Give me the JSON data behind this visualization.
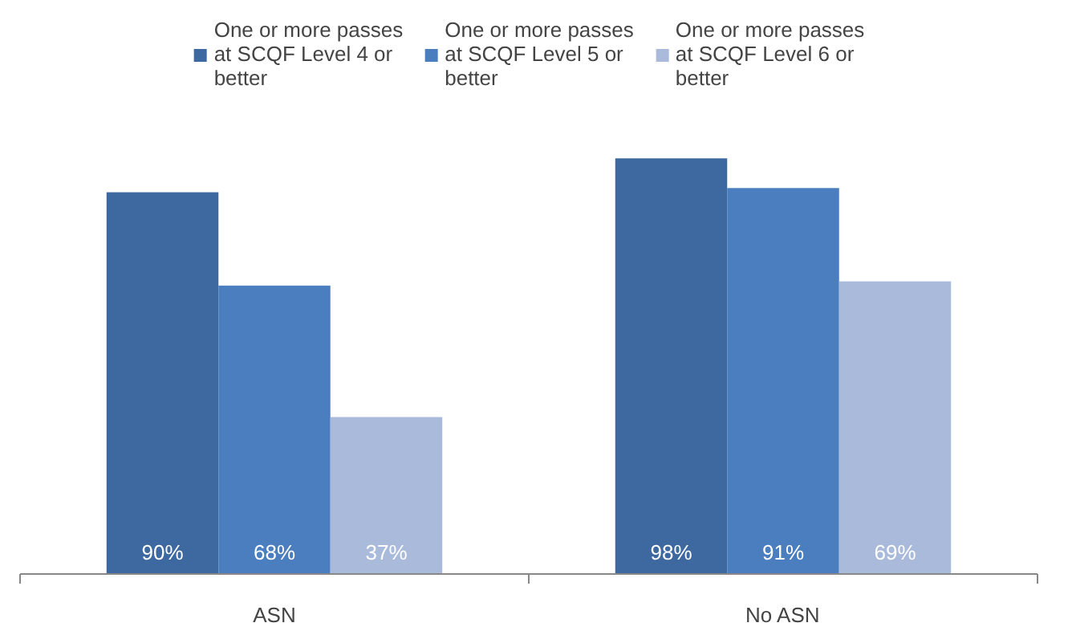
{
  "chart_data": {
    "type": "bar",
    "categories": [
      "ASN",
      "No ASN"
    ],
    "series": [
      {
        "name": "One or more passes at SCQF Level 4 or better",
        "color": "#3e69a0",
        "values": [
          90,
          98
        ],
        "value_labels": [
          "90%",
          "98%"
        ]
      },
      {
        "name": "One or more passes at SCQF Level 5 or better",
        "color": "#4a7ebf",
        "values": [
          68,
          91
        ],
        "value_labels": [
          "68%",
          "91%"
        ]
      },
      {
        "name": "One or more passes at SCQF Level 6 or better",
        "color": "#a9badb",
        "values": [
          37,
          69
        ],
        "value_labels": [
          "37%",
          "69%"
        ]
      }
    ],
    "legend": "top"
  }
}
